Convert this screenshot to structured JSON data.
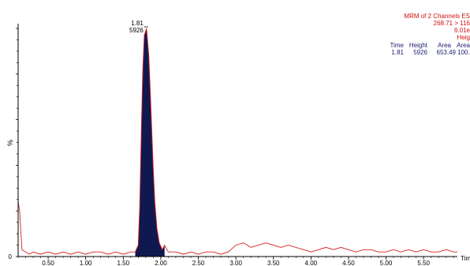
{
  "header": {
    "line1": "MRM of 2 Channels ES",
    "line2": "268.71 > 116",
    "line3": "6.01e",
    "line4": "Heig"
  },
  "peak_table": {
    "headers": [
      "Time",
      "Height",
      "Area",
      "Area"
    ],
    "row": [
      "1.81",
      "5926",
      "653.49",
      "100."
    ]
  },
  "peak_label": {
    "time": "1.81",
    "height": "5926"
  },
  "colors": {
    "trace": "#d42020",
    "fill": "#101850",
    "axis": "#000000",
    "header": "#d01010",
    "table": "#1c1c70"
  },
  "chart_data": {
    "type": "area",
    "xlabel": "Time",
    "ylabel": "%",
    "xlim": [
      0.1,
      5.95
    ],
    "ylim": [
      0,
      100
    ],
    "xticks": [
      "0.50",
      "1.00",
      "1.50",
      "2.00",
      "2.50",
      "3.00",
      "3.50",
      "4.00",
      "4.50",
      "5.00",
      "5.50"
    ],
    "xtick_values": [
      0.5,
      1.0,
      1.5,
      2.0,
      2.5,
      3.0,
      3.5,
      4.0,
      4.5,
      5.0,
      5.5
    ],
    "ytick_labels": [
      "0"
    ],
    "series": [
      {
        "x": [
          0.1,
          0.12,
          0.15,
          0.2,
          0.25,
          0.3,
          0.4,
          0.5,
          0.6,
          0.7,
          0.8,
          0.9,
          1.0,
          1.1,
          1.2,
          1.3,
          1.4,
          1.5,
          1.6,
          1.66,
          1.7,
          1.72,
          1.74,
          1.76,
          1.78,
          1.8,
          1.81,
          1.82,
          1.84,
          1.86,
          1.88,
          1.9,
          1.92,
          1.95,
          1.98,
          2.02,
          2.05,
          2.1,
          2.2,
          2.3,
          2.4,
          2.5,
          2.6,
          2.7,
          2.8,
          2.9,
          3.0,
          3.1,
          3.2,
          3.3,
          3.4,
          3.5,
          3.6,
          3.7,
          3.8,
          3.9,
          4.0,
          4.1,
          4.2,
          4.3,
          4.4,
          4.5,
          4.6,
          4.7,
          4.8,
          4.9,
          5.0,
          5.1,
          5.2,
          5.3,
          5.4,
          5.5,
          5.6,
          5.7,
          5.8,
          5.9,
          5.95
        ],
        "values": [
          24,
          20,
          3,
          2,
          1,
          2,
          1,
          2,
          1,
          2,
          1,
          2,
          1,
          2,
          2,
          1,
          2,
          1,
          2,
          2,
          5,
          22,
          55,
          82,
          97,
          99,
          100,
          96,
          88,
          72,
          55,
          38,
          24,
          12,
          6,
          3,
          5,
          2,
          2,
          1,
          2,
          1,
          2,
          2,
          1,
          2,
          5,
          6,
          4,
          5,
          6,
          5,
          4,
          5,
          4,
          3,
          2,
          3,
          4,
          3,
          4,
          3,
          2,
          3,
          3,
          2,
          2,
          3,
          2,
          3,
          2,
          3,
          2,
          2,
          3,
          2,
          2
        ]
      }
    ]
  }
}
